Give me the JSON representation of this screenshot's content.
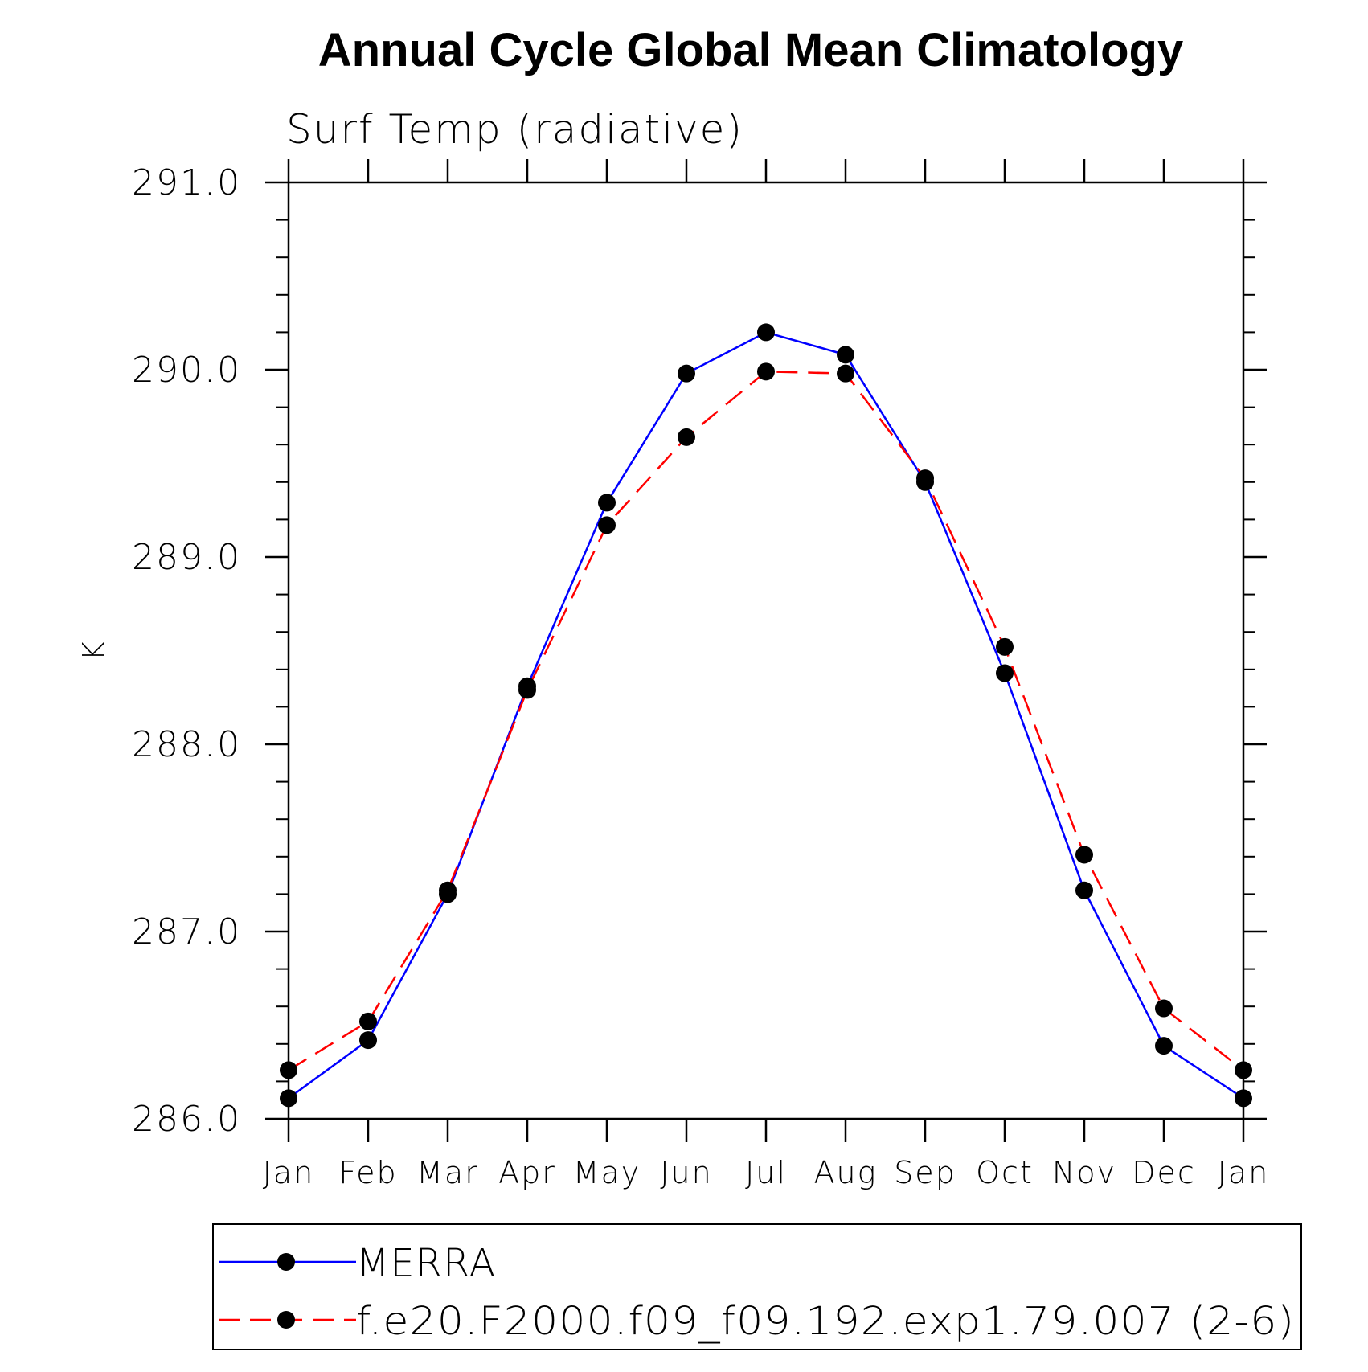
{
  "chart_data": {
    "type": "line",
    "title": "Annual Cycle Global Mean Climatology",
    "subtitle": "Surf Temp (radiative)",
    "xlabel": "",
    "ylabel": "K",
    "categories": [
      "Jan",
      "Feb",
      "Mar",
      "Apr",
      "May",
      "Jun",
      "Jul",
      "Aug",
      "Sep",
      "Oct",
      "Nov",
      "Dec",
      "Jan"
    ],
    "ylim": [
      286.0,
      291.0
    ],
    "yticks": [
      "286.0",
      "287.0",
      "288.0",
      "289.0",
      "290.0",
      "291.0"
    ],
    "ytick_values": [
      286.0,
      287.0,
      288.0,
      289.0,
      290.0,
      291.0
    ],
    "minor_ytick_step": 0.2,
    "grid": false,
    "legend_position": "bottom",
    "series": [
      {
        "name": "MERRA",
        "color": "#0000ff",
        "line_style": "solid",
        "marker": "filled-circle",
        "values": [
          286.11,
          286.42,
          287.2,
          288.31,
          289.29,
          289.98,
          290.2,
          290.08,
          289.4,
          288.38,
          287.22,
          286.39,
          286.11
        ]
      },
      {
        "name": "f.e20.F2000.f09_f09.192.exp1.79.007 (2-6)",
        "color": "#ff0000",
        "line_style": "dashed",
        "marker": "filled-circle",
        "values": [
          286.26,
          286.52,
          287.22,
          288.29,
          289.17,
          289.64,
          289.99,
          289.98,
          289.42,
          288.52,
          287.41,
          286.59,
          286.26
        ]
      }
    ]
  }
}
